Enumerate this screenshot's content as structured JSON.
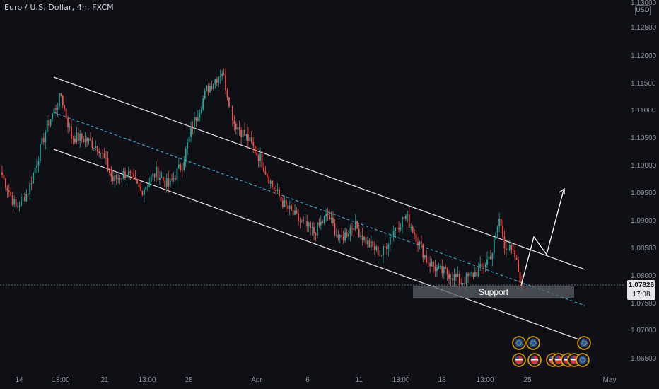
{
  "header": {
    "symbol_title": "Euro / U.S. Dollar, 4h, FXCM",
    "currency": "USD"
  },
  "price_tag": {
    "price": "1.07826",
    "countdown": "17:08"
  },
  "annotations": {
    "support_label": "Support"
  },
  "colors": {
    "background": "#0f1016",
    "up_candle": "#26a69a",
    "down_candle": "#ef5350",
    "channel_line": "#e6e6e6",
    "midline": "#3fa3c4",
    "support_zone": "#5a5d66",
    "axis_text": "#8f929c",
    "projection": "#ffffff"
  },
  "chart_data": {
    "type": "candlestick",
    "title": "Euro / U.S. Dollar, 4h, FXCM",
    "x_ticks": [
      "14",
      "13:00",
      "21",
      "13:00",
      "28",
      "Apr",
      "6",
      "11",
      "13:00",
      "18",
      "13:00",
      "25",
      "May"
    ],
    "y_ticks": [
      "1.13000",
      "1.12500",
      "1.12000",
      "1.11500",
      "1.11000",
      "1.10500",
      "1.10000",
      "1.09500",
      "1.09000",
      "1.08500",
      "1.08000",
      "1.07500",
      "1.07000",
      "1.06500"
    ],
    "ylim": [
      1.0625,
      1.132
    ],
    "last_price": 1.07826,
    "pivots": [
      [
        0,
        1.0985
      ],
      [
        8,
        1.0925
      ],
      [
        15,
        1.0955
      ],
      [
        26,
        1.1075
      ],
      [
        34,
        1.113
      ],
      [
        40,
        1.1055
      ],
      [
        48,
        1.105
      ],
      [
        56,
        1.1035
      ],
      [
        64,
        1.0975
      ],
      [
        72,
        1.099
      ],
      [
        80,
        1.0955
      ],
      [
        89,
        1.099
      ],
      [
        96,
        1.0965
      ],
      [
        104,
        1.1005
      ],
      [
        110,
        1.1075
      ],
      [
        118,
        1.114
      ],
      [
        127,
        1.1175
      ],
      [
        134,
        1.108
      ],
      [
        142,
        1.105
      ],
      [
        149,
        1.1015
      ],
      [
        156,
        1.0965
      ],
      [
        163,
        1.093
      ],
      [
        172,
        1.09
      ],
      [
        180,
        1.088
      ],
      [
        188,
        1.0912
      ],
      [
        195,
        1.0865
      ],
      [
        203,
        1.0895
      ],
      [
        211,
        1.086
      ],
      [
        219,
        1.084
      ],
      [
        226,
        1.0885
      ],
      [
        233,
        1.091
      ],
      [
        238,
        1.088
      ],
      [
        245,
        1.083
      ],
      [
        252,
        1.081
      ],
      [
        258,
        1.0805
      ],
      [
        265,
        1.079
      ],
      [
        270,
        1.08
      ],
      [
        277,
        1.0815
      ],
      [
        283,
        1.0845
      ],
      [
        287,
        1.0905
      ],
      [
        290,
        1.086
      ],
      [
        296,
        1.0835
      ],
      [
        300,
        1.0785
      ]
    ],
    "channel": {
      "upper": {
        "from": [
          "13:00 (Mar 15)",
          1.1163
        ],
        "to": [
          "25",
          1.0815
        ]
      },
      "lower": {
        "from": [
          "13:00 (Mar 15)",
          1.1031
        ],
        "to": [
          "25",
          1.0682
        ]
      },
      "midline": {
        "from": [
          "13:00 (Mar 15)",
          1.1103
        ],
        "to": [
          "25",
          1.0755
        ]
      }
    },
    "support_zone": {
      "price_low": 1.077,
      "price_high": 1.0787,
      "label": "Support"
    },
    "projection_path": [
      [
        1.0783
      ],
      [
        1.0872
      ],
      [
        1.084
      ],
      [
        1.0957
      ]
    ]
  }
}
